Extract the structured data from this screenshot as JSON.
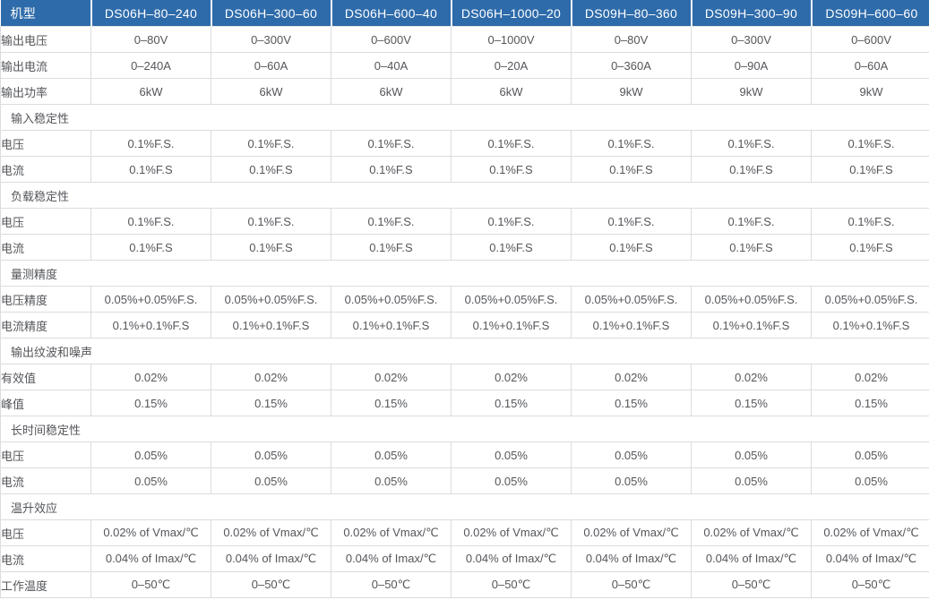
{
  "table": {
    "header": {
      "model_label": "机型",
      "models": [
        "DS06H–80–240",
        "DS06H–300–60",
        "DS06H–600–40",
        "DS06H–1000–20",
        "DS09H–80–360",
        "DS09H–300–90",
        "DS09H–600–60"
      ]
    },
    "rows": [
      {
        "type": "data",
        "label": "输出电压",
        "values": [
          "0–80V",
          "0–300V",
          "0–600V",
          "0–1000V",
          "0–80V",
          "0–300V",
          "0–600V"
        ]
      },
      {
        "type": "data",
        "label": "输出电流",
        "values": [
          "0–240A",
          "0–60A",
          "0–40A",
          "0–20A",
          "0–360A",
          "0–90A",
          "0–60A"
        ]
      },
      {
        "type": "data",
        "label": "输出功率",
        "values": [
          "6kW",
          "6kW",
          "6kW",
          "6kW",
          "9kW",
          "9kW",
          "9kW"
        ]
      },
      {
        "type": "section",
        "label": "输入稳定性"
      },
      {
        "type": "data",
        "label": "电压",
        "values": [
          "0.1%F.S.",
          "0.1%F.S.",
          "0.1%F.S.",
          "0.1%F.S.",
          "0.1%F.S.",
          "0.1%F.S.",
          "0.1%F.S."
        ]
      },
      {
        "type": "data",
        "label": "电流",
        "values": [
          "0.1%F.S",
          "0.1%F.S",
          "0.1%F.S",
          "0.1%F.S",
          "0.1%F.S",
          "0.1%F.S",
          "0.1%F.S"
        ]
      },
      {
        "type": "section",
        "label": "负载稳定性"
      },
      {
        "type": "data",
        "label": "电压",
        "values": [
          "0.1%F.S.",
          "0.1%F.S.",
          "0.1%F.S.",
          "0.1%F.S.",
          "0.1%F.S.",
          "0.1%F.S.",
          "0.1%F.S."
        ]
      },
      {
        "type": "data",
        "label": "电流",
        "values": [
          "0.1%F.S",
          "0.1%F.S",
          "0.1%F.S",
          "0.1%F.S",
          "0.1%F.S",
          "0.1%F.S",
          "0.1%F.S"
        ]
      },
      {
        "type": "section",
        "label": "量测精度"
      },
      {
        "type": "data",
        "label": "电压精度",
        "values": [
          "0.05%+0.05%F.S.",
          "0.05%+0.05%F.S.",
          "0.05%+0.05%F.S.",
          "0.05%+0.05%F.S.",
          "0.05%+0.05%F.S.",
          "0.05%+0.05%F.S.",
          "0.05%+0.05%F.S."
        ]
      },
      {
        "type": "data",
        "label": "电流精度",
        "values": [
          "0.1%+0.1%F.S",
          "0.1%+0.1%F.S",
          "0.1%+0.1%F.S",
          "0.1%+0.1%F.S",
          "0.1%+0.1%F.S",
          "0.1%+0.1%F.S",
          "0.1%+0.1%F.S"
        ]
      },
      {
        "type": "section",
        "label": "输出纹波和噪声"
      },
      {
        "type": "data",
        "label": "有效值",
        "values": [
          "0.02%",
          "0.02%",
          "0.02%",
          "0.02%",
          "0.02%",
          "0.02%",
          "0.02%"
        ]
      },
      {
        "type": "data",
        "label": "峰值",
        "values": [
          "0.15%",
          "0.15%",
          "0.15%",
          "0.15%",
          "0.15%",
          "0.15%",
          "0.15%"
        ]
      },
      {
        "type": "section",
        "label": "长时间稳定性"
      },
      {
        "type": "data",
        "label": "电压",
        "values": [
          "0.05%",
          "0.05%",
          "0.05%",
          "0.05%",
          "0.05%",
          "0.05%",
          "0.05%"
        ]
      },
      {
        "type": "data",
        "label": "电流",
        "values": [
          "0.05%",
          "0.05%",
          "0.05%",
          "0.05%",
          "0.05%",
          "0.05%",
          "0.05%"
        ]
      },
      {
        "type": "section",
        "label": "温升效应"
      },
      {
        "type": "data",
        "label": "电压",
        "values": [
          "0.02% of Vmax/℃",
          "0.02% of Vmax/℃",
          "0.02% of Vmax/℃",
          "0.02% of Vmax/℃",
          "0.02% of Vmax/℃",
          "0.02% of Vmax/℃",
          "0.02% of Vmax/℃"
        ]
      },
      {
        "type": "data",
        "label": "电流",
        "values": [
          "0.04% of Imax/℃",
          "0.04% of Imax/℃",
          "0.04% of Imax/℃",
          "0.04% of Imax/℃",
          "0.04% of Imax/℃",
          "0.04% of Imax/℃",
          "0.04% of Imax/℃"
        ]
      },
      {
        "type": "data",
        "label": "工作温度",
        "values": [
          "0–50℃",
          "0–50℃",
          "0–50℃",
          "0–50℃",
          "0–50℃",
          "0–50℃",
          "0–50℃"
        ]
      }
    ],
    "colors": {
      "header_bg": "#2e6baa",
      "header_text": "#ffffff",
      "border": "#dadcde",
      "body_text": "#54565a"
    }
  }
}
